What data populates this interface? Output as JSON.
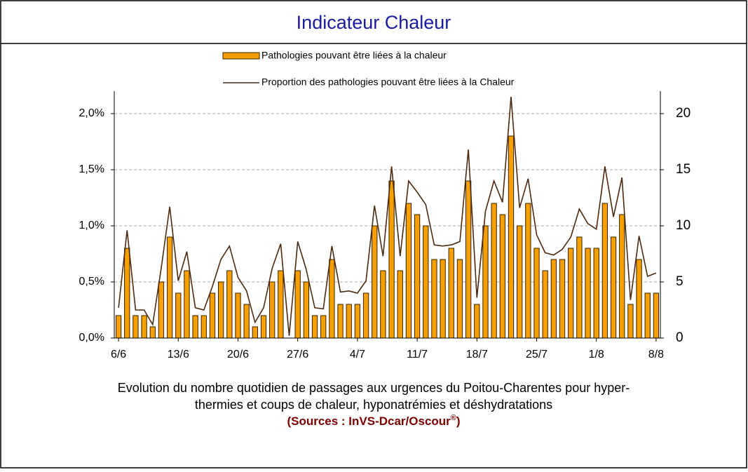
{
  "chart_data": {
    "type": "bar-line",
    "title": "Indicateur Chaleur",
    "caption": [
      "Evolution du nombre quotidien de passages aux urgences du Poitou-Charentes pour hyper-",
      "thermies et coups de chaleur, hyponatrémies et déshydratations"
    ],
    "sources": {
      "text": "(Sources : InVS-Dcar/Oscour",
      "mark": "®",
      "close": ")"
    },
    "categories": [
      "6/6",
      null,
      null,
      null,
      null,
      null,
      null,
      "13/6",
      null,
      null,
      null,
      null,
      null,
      null,
      "20/6",
      null,
      null,
      null,
      null,
      null,
      null,
      "27/6",
      null,
      null,
      null,
      null,
      null,
      null,
      "4/7",
      null,
      null,
      null,
      null,
      null,
      null,
      "11/7",
      null,
      null,
      null,
      null,
      null,
      null,
      "18/7",
      null,
      null,
      null,
      null,
      null,
      null,
      "25/7",
      null,
      null,
      null,
      null,
      null,
      null,
      "1/8",
      null,
      null,
      null,
      null,
      null,
      null,
      "8/8"
    ],
    "series": [
      {
        "name": "Pathologies pouvant être liées à la chaleur",
        "color": "#f5a000",
        "axis": "y2",
        "values": [
          2,
          8,
          2,
          2,
          1,
          5,
          9,
          4,
          6,
          2,
          2,
          4,
          5,
          6,
          4,
          3,
          1,
          2,
          5,
          6,
          0,
          6,
          5,
          2,
          2,
          7,
          3,
          3,
          3,
          4,
          10,
          6,
          14,
          6,
          12,
          11,
          10,
          7,
          7,
          8,
          7,
          14,
          3,
          10,
          12,
          11,
          18,
          10,
          12,
          8,
          6,
          7,
          7,
          8,
          9,
          8,
          8,
          12,
          9,
          11,
          3,
          7,
          4,
          4
        ]
      },
      {
        "name": "Proportion des pathologies pouvant être liées à la Chaleur",
        "color": "#4a2a10",
        "axis": "y",
        "values": [
          0.27,
          0.96,
          0.25,
          0.25,
          0.12,
          0.62,
          1.17,
          0.51,
          0.77,
          0.27,
          0.25,
          0.46,
          0.7,
          0.82,
          0.54,
          0.42,
          0.14,
          0.27,
          0.62,
          0.84,
          0.02,
          0.86,
          0.61,
          0.27,
          0.26,
          0.82,
          0.41,
          0.42,
          0.4,
          0.51,
          1.18,
          0.73,
          1.53,
          0.73,
          1.4,
          1.3,
          1.19,
          0.83,
          0.82,
          0.83,
          0.86,
          1.68,
          0.36,
          1.13,
          1.4,
          1.21,
          2.15,
          1.16,
          1.42,
          0.92,
          0.76,
          0.74,
          0.79,
          0.9,
          1.15,
          1.02,
          0.97,
          1.53,
          1.08,
          1.43,
          0.34,
          0.91,
          0.55,
          0.58
        ]
      }
    ],
    "ylim": [
      0,
      2.2
    ],
    "yticks": [
      {
        "value": 0,
        "label": "0,0%"
      },
      {
        "value": 0.5,
        "label": "0,5%"
      },
      {
        "value": 1,
        "label": "1,0%"
      },
      {
        "value": 1.5,
        "label": "1,5%"
      },
      {
        "value": 2,
        "label": "2,0%"
      }
    ],
    "y2lim": [
      0,
      22
    ],
    "y2ticks": [
      0,
      5,
      10,
      15,
      20
    ],
    "grid": true
  }
}
